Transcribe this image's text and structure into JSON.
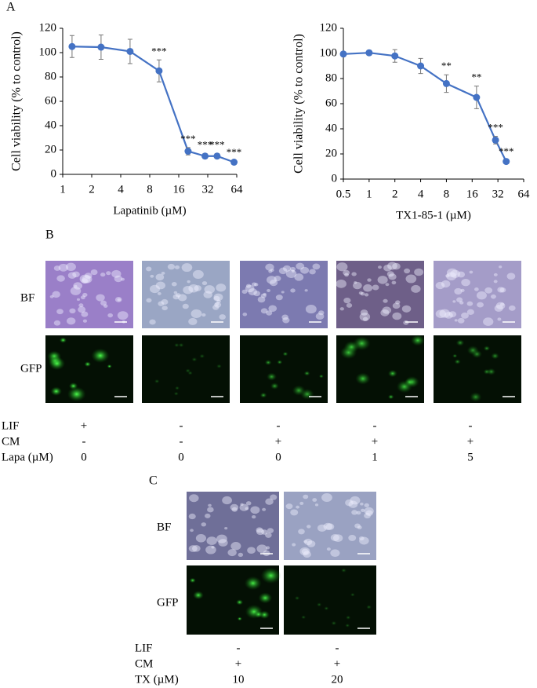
{
  "panel_labels": [
    "A",
    "B",
    "C"
  ],
  "chart_data": [
    {
      "type": "line",
      "xlabel": "Lapatinib (µM)",
      "ylabel": "Cell viability (% to control)",
      "xscale": "log2",
      "xlim": [
        1,
        64
      ],
      "xticks": [
        1,
        2,
        4,
        8,
        16,
        32,
        64
      ],
      "ylim": [
        0,
        120
      ],
      "yticks": [
        0,
        20,
        40,
        60,
        80,
        100,
        120
      ],
      "color": "#4472c4",
      "x": [
        1.25,
        2.5,
        5,
        10,
        20,
        30,
        40,
        60
      ],
      "values": [
        105,
        104.5,
        101,
        85,
        19,
        15,
        15,
        10
      ],
      "errors": [
        9,
        10,
        10,
        9,
        3,
        2,
        2,
        1
      ],
      "point_labels": [
        null,
        null,
        null,
        "***",
        "***",
        "***",
        "***",
        "***"
      ]
    },
    {
      "type": "line",
      "xlabel": "TX1-85-1 (µM)",
      "ylabel": "Cell viability (% to control)",
      "xscale": "log2",
      "xlim": [
        0.5,
        64
      ],
      "xticks": [
        0.5,
        1,
        2,
        4,
        8,
        16,
        32,
        64
      ],
      "ylim": [
        0,
        120
      ],
      "yticks": [
        0,
        20,
        40,
        60,
        80,
        100,
        120
      ],
      "color": "#4472c4",
      "x": [
        0.5,
        1,
        2,
        4,
        8,
        18,
        30,
        40
      ],
      "values": [
        99.5,
        100.5,
        98,
        90,
        76,
        65,
        31,
        14
      ],
      "errors": [
        1,
        2,
        5,
        6,
        7,
        9,
        3,
        1
      ],
      "point_labels": [
        null,
        null,
        null,
        null,
        "**",
        "**",
        "***",
        "***"
      ]
    }
  ],
  "panel_b": {
    "row_labels": [
      "BF",
      "GFP"
    ],
    "conditions": [
      {
        "label": "LIF",
        "values": [
          "+",
          "-",
          "-",
          "-",
          "-"
        ]
      },
      {
        "label": "CM",
        "values": [
          "-",
          "-",
          "+",
          "+",
          "+"
        ]
      },
      {
        "label": "Lapa (µM)",
        "values": [
          0,
          0,
          0,
          1,
          5
        ]
      }
    ]
  },
  "panel_c": {
    "row_labels": [
      "BF",
      "GFP"
    ],
    "conditions": [
      {
        "label": "LIF",
        "values": [
          "-",
          "-"
        ]
      },
      {
        "label": "CM",
        "values": [
          "+",
          "+"
        ]
      },
      {
        "label": "TX (µM)",
        "values": [
          10,
          20
        ]
      }
    ]
  }
}
